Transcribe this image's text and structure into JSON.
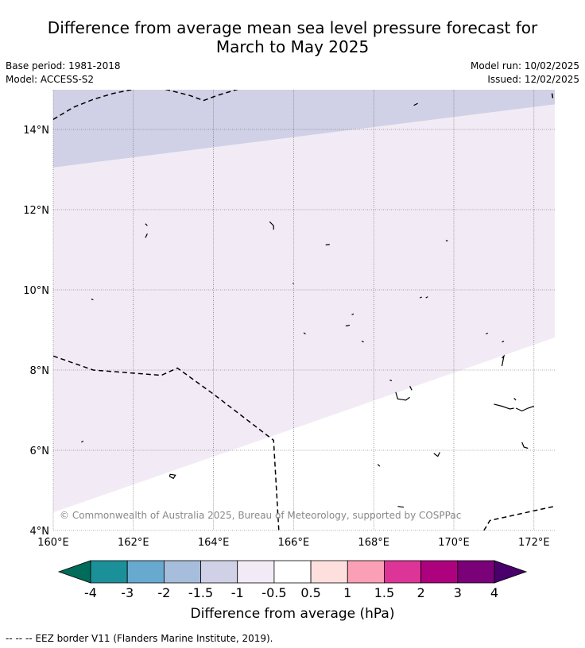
{
  "title": {
    "line1": "Difference from average mean sea level pressure forecast for",
    "line2": "March to May 2025"
  },
  "meta": {
    "base_period": "Base period: 1981-2018",
    "model": "Model: ACCESS-S2",
    "model_run": "Model run: 10/02/2025",
    "issued": "Issued: 12/02/2025"
  },
  "map": {
    "lon_range": [
      160,
      172.5
    ],
    "lat_range": [
      4,
      15
    ],
    "lon_ticks": [
      {
        "value": 160,
        "label": "160°E"
      },
      {
        "value": 162,
        "label": "162°E"
      },
      {
        "value": 164,
        "label": "164°E"
      },
      {
        "value": 166,
        "label": "166°E"
      },
      {
        "value": 168,
        "label": "168°E"
      },
      {
        "value": 170,
        "label": "170°E"
      },
      {
        "value": 172,
        "label": "172°E"
      }
    ],
    "lat_ticks": [
      {
        "value": 4,
        "label": "4°N"
      },
      {
        "value": 6,
        "label": "6°N"
      },
      {
        "value": 8,
        "label": "8°N"
      },
      {
        "value": 10,
        "label": "10°N"
      },
      {
        "value": 12,
        "label": "12°N"
      },
      {
        "value": 14,
        "label": "14°N"
      }
    ],
    "copyright": "© Commonwealth of Australia 2025, Bureau of Meteorology, supported by COSPPac",
    "regions": [
      {
        "range": "-1.5 to -1",
        "color": "#d0d1e6",
        "polygon": [
          [
            160,
            15
          ],
          [
            175.5,
            15
          ],
          [
            160,
            13.05
          ]
        ]
      },
      {
        "range": "-1 to -0.5",
        "color": "#f2ebf5",
        "polygon": [
          [
            160,
            13.05
          ],
          [
            175.5,
            15
          ],
          [
            175.5,
            9.85
          ],
          [
            160,
            4.45
          ]
        ]
      }
    ],
    "eez_lines": [
      [
        [
          160,
          14.25
        ],
        [
          160.5,
          14.55
        ],
        [
          161,
          14.75
        ],
        [
          161.5,
          14.9
        ],
        [
          162,
          15
        ]
      ],
      [
        [
          162.8,
          15
        ],
        [
          163.4,
          14.85
        ],
        [
          163.75,
          14.72
        ],
        [
          164.1,
          14.85
        ],
        [
          164.6,
          15
        ]
      ],
      [
        [
          172.45,
          14.9
        ],
        [
          172.47,
          14.78
        ]
      ],
      [
        [
          160,
          8.35
        ],
        [
          161,
          8.0
        ],
        [
          162.7,
          7.87
        ],
        [
          163.1,
          8.05
        ],
        [
          164,
          7.4
        ],
        [
          165.5,
          6.25
        ],
        [
          165.63,
          4
        ]
      ],
      [
        [
          170.75,
          4
        ],
        [
          170.9,
          4.25
        ],
        [
          172.5,
          4.6
        ]
      ]
    ],
    "islands": [
      [
        [
          169,
          14.6
        ],
        [
          169.1,
          14.65
        ]
      ],
      [
        [
          162.3,
          11.65
        ],
        [
          162.35,
          11.6
        ]
      ],
      [
        [
          162.35,
          11.4
        ],
        [
          162.3,
          11.3
        ]
      ],
      [
        [
          165.4,
          11.7
        ],
        [
          165.5,
          11.6
        ],
        [
          165.5,
          11.5
        ]
      ],
      [
        [
          166.8,
          11.12
        ],
        [
          166.9,
          11.13
        ]
      ],
      [
        [
          169.8,
          11.22
        ],
        [
          169.85,
          11.23
        ]
      ],
      [
        [
          165.98,
          10.17
        ],
        [
          166,
          10.15
        ]
      ],
      [
        [
          160.95,
          9.77
        ],
        [
          161,
          9.75
        ]
      ],
      [
        [
          169.15,
          9.8
        ],
        [
          169.2,
          9.82
        ]
      ],
      [
        [
          169.3,
          9.8
        ],
        [
          169.35,
          9.83
        ]
      ],
      [
        [
          167.3,
          9.1
        ],
        [
          167.4,
          9.12
        ]
      ],
      [
        [
          167.45,
          9.38
        ],
        [
          167.5,
          9.4
        ]
      ],
      [
        [
          166.25,
          8.93
        ],
        [
          166.3,
          8.9
        ]
      ],
      [
        [
          167.7,
          8.72
        ],
        [
          167.75,
          8.7
        ]
      ],
      [
        [
          170.8,
          8.9
        ],
        [
          170.85,
          8.92
        ]
      ],
      [
        [
          171.2,
          8.7
        ],
        [
          171.25,
          8.72
        ]
      ],
      [
        [
          171.2,
          8.3
        ],
        [
          171.25,
          8.35
        ],
        [
          171.2,
          8.1
        ]
      ],
      [
        [
          168.4,
          7.75
        ],
        [
          168.45,
          7.73
        ]
      ],
      [
        [
          168.55,
          7.45
        ],
        [
          168.6,
          7.28
        ],
        [
          168.8,
          7.25
        ],
        [
          168.9,
          7.32
        ]
      ],
      [
        [
          168.9,
          7.6
        ],
        [
          168.95,
          7.5
        ]
      ],
      [
        [
          171,
          7.15
        ],
        [
          171.2,
          7.1
        ],
        [
          171.4,
          7.03
        ],
        [
          171.5,
          7.05
        ]
      ],
      [
        [
          171.55,
          7.05
        ],
        [
          171.7,
          6.98
        ],
        [
          171.85,
          7.05
        ],
        [
          172,
          7.1
        ]
      ],
      [
        [
          171.5,
          7.3
        ],
        [
          171.55,
          7.25
        ]
      ],
      [
        [
          171.7,
          6.2
        ],
        [
          171.75,
          6.08
        ],
        [
          171.85,
          6.05
        ]
      ],
      [
        [
          169.5,
          5.92
        ],
        [
          169.6,
          5.85
        ],
        [
          169.65,
          5.95
        ]
      ],
      [
        [
          168.1,
          5.65
        ],
        [
          168.15,
          5.6
        ]
      ],
      [
        [
          160.7,
          6.2
        ],
        [
          160.75,
          6.23
        ]
      ],
      [
        [
          162.9,
          5.35
        ],
        [
          163,
          5.3
        ],
        [
          163.05,
          5.38
        ],
        [
          162.92,
          5.4
        ],
        [
          162.9,
          5.35
        ]
      ],
      [
        [
          168.6,
          4.6
        ],
        [
          168.75,
          4.58
        ]
      ]
    ]
  },
  "colorbar": {
    "label": "Difference from average (hPa)",
    "tick_labels": [
      "-4",
      "-3",
      "-2",
      "-1.5",
      "-1",
      "-0.5",
      "0.5",
      "1",
      "1.5",
      "2",
      "3",
      "4"
    ],
    "low_extend_color": "#016c59",
    "high_extend_color": "#49006a",
    "colors": [
      "#1c9099",
      "#67a9cf",
      "#a6bddb",
      "#d0d1e6",
      "#f2ebf5",
      "#ffffff",
      "#fde0dd",
      "#fa9fb5",
      "#dd3497",
      "#ae017e",
      "#7a0177"
    ]
  },
  "footnote": "--  --  -- EEZ border V11 (Flanders Marine Institute, 2019)."
}
